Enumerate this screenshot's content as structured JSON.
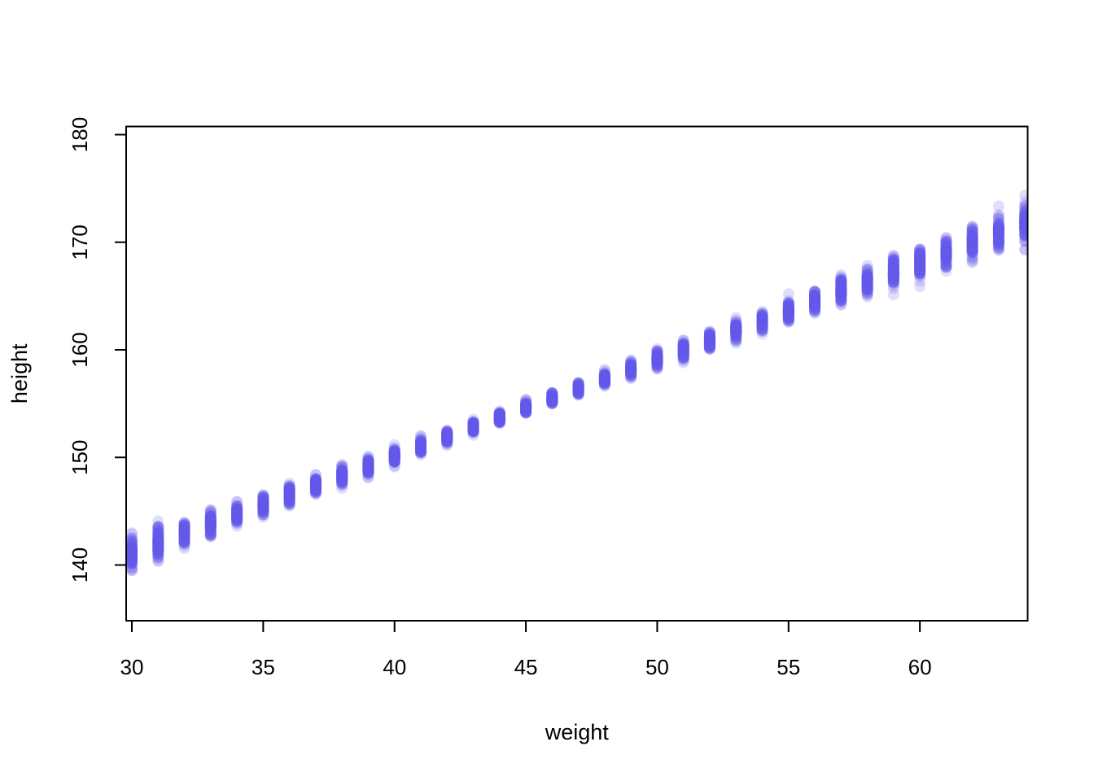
{
  "figure": {
    "background": "#ffffff",
    "text_color": "#000000"
  },
  "chart_data": {
    "type": "scatter",
    "title": "",
    "xlabel": "weight",
    "ylabel": "height",
    "x_ticks": [
      30,
      35,
      40,
      45,
      50,
      55,
      60
    ],
    "y_ticks": [
      140,
      150,
      160,
      170,
      180
    ],
    "xlim": [
      29.75,
      64.1
    ],
    "ylim": [
      134.8,
      180.9
    ],
    "grid": false,
    "legend": null,
    "point_color": "#655CEC",
    "point_alpha": 0.2,
    "point_radius_px": 7,
    "points_per_cluster": 100,
    "description": "Posterior samples of mean height (mu) at each integer weight value; 100 semi-transparent blue points per weight form vertical clusters, tight near weight 45 and wider at both extremes.",
    "clusters": [
      {
        "weight": 30,
        "mu": 141.1,
        "sd": 0.69
      },
      {
        "weight": 31,
        "mu": 142.0,
        "sd": 0.65
      },
      {
        "weight": 32,
        "mu": 142.9,
        "sd": 0.61
      },
      {
        "weight": 33,
        "mu": 143.8,
        "sd": 0.57
      },
      {
        "weight": 34,
        "mu": 144.7,
        "sd": 0.54
      },
      {
        "weight": 35,
        "mu": 145.6,
        "sd": 0.5
      },
      {
        "weight": 36,
        "mu": 146.5,
        "sd": 0.46
      },
      {
        "weight": 37,
        "mu": 147.4,
        "sd": 0.43
      },
      {
        "weight": 38,
        "mu": 148.3,
        "sd": 0.4
      },
      {
        "weight": 39,
        "mu": 149.2,
        "sd": 0.37
      },
      {
        "weight": 40,
        "mu": 150.1,
        "sd": 0.34
      },
      {
        "weight": 41,
        "mu": 151.0,
        "sd": 0.32
      },
      {
        "weight": 42,
        "mu": 151.9,
        "sd": 0.3
      },
      {
        "weight": 43,
        "mu": 152.8,
        "sd": 0.28
      },
      {
        "weight": 44,
        "mu": 153.7,
        "sd": 0.27
      },
      {
        "weight": 45,
        "mu": 154.6,
        "sd": 0.27
      },
      {
        "weight": 46,
        "mu": 155.5,
        "sd": 0.27
      },
      {
        "weight": 47,
        "mu": 156.4,
        "sd": 0.28
      },
      {
        "weight": 48,
        "mu": 157.3,
        "sd": 0.3
      },
      {
        "weight": 49,
        "mu": 158.2,
        "sd": 0.32
      },
      {
        "weight": 50,
        "mu": 159.1,
        "sd": 0.34
      },
      {
        "weight": 51,
        "mu": 160.0,
        "sd": 0.37
      },
      {
        "weight": 52,
        "mu": 160.9,
        "sd": 0.4
      },
      {
        "weight": 53,
        "mu": 161.8,
        "sd": 0.43
      },
      {
        "weight": 54,
        "mu": 162.7,
        "sd": 0.46
      },
      {
        "weight": 55,
        "mu": 163.6,
        "sd": 0.5
      },
      {
        "weight": 56,
        "mu": 164.5,
        "sd": 0.54
      },
      {
        "weight": 57,
        "mu": 165.4,
        "sd": 0.57
      },
      {
        "weight": 58,
        "mu": 166.3,
        "sd": 0.61
      },
      {
        "weight": 59,
        "mu": 167.2,
        "sd": 0.65
      },
      {
        "weight": 60,
        "mu": 168.1,
        "sd": 0.69
      },
      {
        "weight": 61,
        "mu": 169.0,
        "sd": 0.72
      },
      {
        "weight": 62,
        "mu": 169.9,
        "sd": 0.76
      },
      {
        "weight": 63,
        "mu": 170.8,
        "sd": 0.8
      },
      {
        "weight": 64,
        "mu": 171.7,
        "sd": 0.84
      }
    ]
  }
}
